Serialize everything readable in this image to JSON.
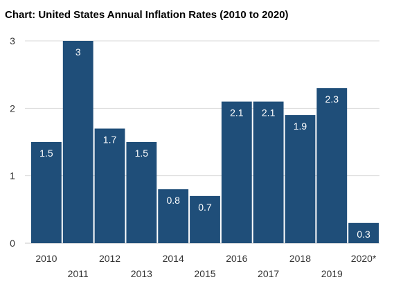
{
  "chart_data": {
    "type": "bar",
    "title": "Chart: United States Annual Inflation Rates (2010 to 2020)",
    "xlabel": "",
    "ylabel": "",
    "categories": [
      "2010",
      "2011",
      "2012",
      "2013",
      "2014",
      "2015",
      "2016",
      "2017",
      "2018",
      "2019",
      "2020*"
    ],
    "values": [
      1.5,
      3,
      1.7,
      1.5,
      0.8,
      0.7,
      2.1,
      2.1,
      1.9,
      2.3,
      0.3
    ],
    "data_labels": [
      "1.5",
      "3",
      "1.7",
      "1.5",
      "0.8",
      "0.7",
      "2.1",
      "2.1",
      "1.9",
      "2.3",
      "0.3"
    ],
    "yticks": [
      "0",
      "1",
      "2",
      "3"
    ],
    "ylim": [
      0,
      3
    ],
    "grid": true,
    "legend": false,
    "bar_color": "#1f4e79"
  }
}
